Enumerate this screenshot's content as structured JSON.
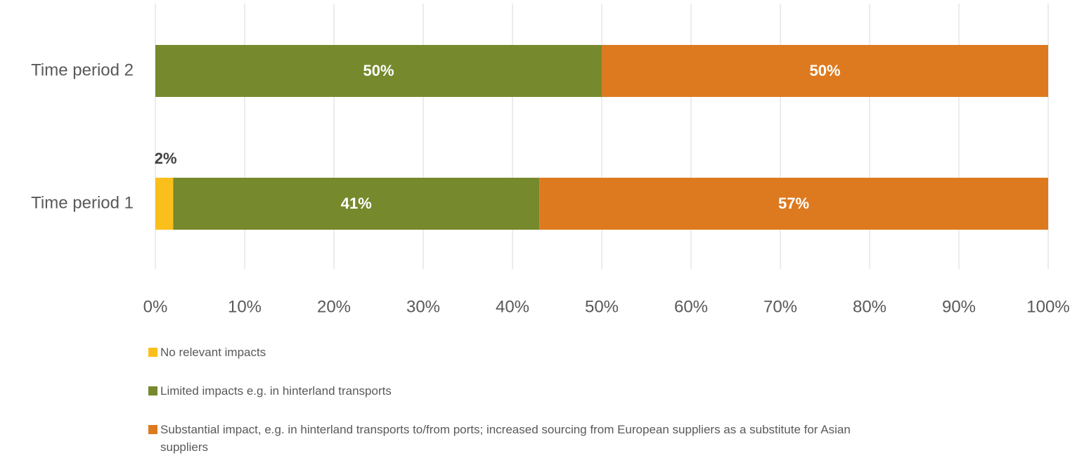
{
  "chart_data": {
    "type": "stacked-barh",
    "categories": [
      "Time period 1",
      "Time period 2"
    ],
    "series": [
      {
        "name": "No relevant impacts",
        "color": "#fbbf1c",
        "values": [
          2,
          0
        ],
        "value_labels": [
          "2%",
          null
        ]
      },
      {
        "name": "Limited impacts e.g. in hinterland transports",
        "color": "#76892c",
        "values": [
          41,
          50
        ],
        "value_labels": [
          "41%",
          "50%"
        ]
      },
      {
        "name": "Substantial impact, e.g. in hinterland transports to/from ports; increased sourcing from European suppliers as a substitute for Asian suppliers",
        "color": "#dd7a1f",
        "values": [
          57,
          50
        ],
        "value_labels": [
          "57%",
          "50%"
        ]
      }
    ],
    "xlim": [
      0,
      100
    ],
    "xticks": [
      {
        "value": 0,
        "label": "0%"
      },
      {
        "value": 10,
        "label": "10%"
      },
      {
        "value": 20,
        "label": "20%"
      },
      {
        "value": 30,
        "label": "30%"
      },
      {
        "value": 40,
        "label": "40%"
      },
      {
        "value": 50,
        "label": "50%"
      },
      {
        "value": 60,
        "label": "60%"
      },
      {
        "value": 70,
        "label": "70%"
      },
      {
        "value": 80,
        "label": "80%"
      },
      {
        "value": 90,
        "label": "90%"
      },
      {
        "value": 100,
        "label": "100%"
      }
    ],
    "grid": true,
    "legend": "bottom"
  }
}
